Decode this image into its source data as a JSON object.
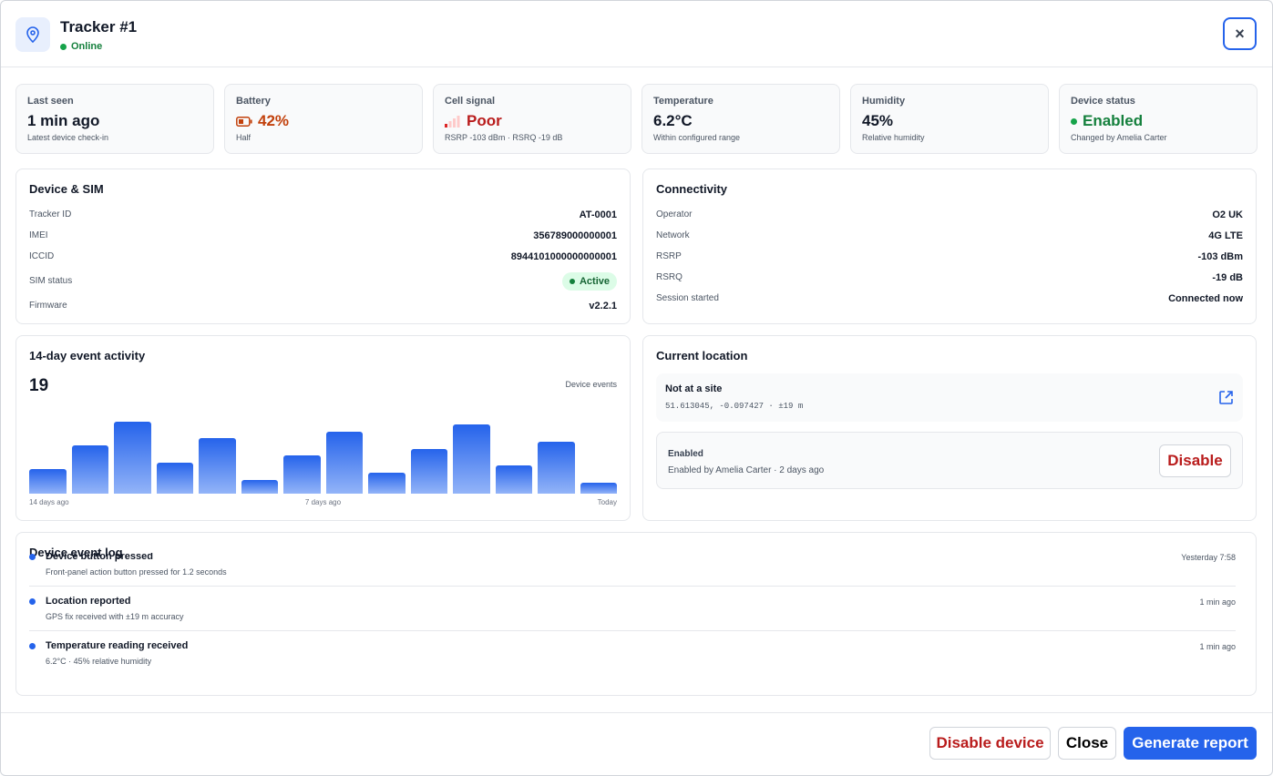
{
  "header": {
    "title": "Tracker #1",
    "status": "Online"
  },
  "stats": [
    {
      "label": "Last seen",
      "value": "1 min ago",
      "sub": "Latest device check-in"
    },
    {
      "label": "Battery",
      "value": "42%",
      "sub": "Half"
    },
    {
      "label": "Cell signal",
      "value": "Poor",
      "sub": "RSRP -103 dBm · RSRQ -19 dB"
    },
    {
      "label": "Temperature",
      "value": "6.2°C",
      "sub": "Within configured range"
    },
    {
      "label": "Humidity",
      "value": "45%",
      "sub": "Relative humidity"
    },
    {
      "label": "Device status",
      "value": "Enabled",
      "sub": "Changed by Amelia Carter"
    }
  ],
  "device_sim": {
    "title": "Device & SIM",
    "rows": [
      {
        "label": "Tracker ID",
        "value": "AT-0001"
      },
      {
        "label": "IMEI",
        "value": "356789000000001"
      },
      {
        "label": "ICCID",
        "value": "8944101000000000001"
      },
      {
        "label": "SIM status",
        "value": "Active"
      },
      {
        "label": "Firmware",
        "value": "v2.2.1"
      }
    ]
  },
  "connectivity": {
    "title": "Connectivity",
    "rows": [
      {
        "label": "Operator",
        "value": "O2 UK"
      },
      {
        "label": "Network",
        "value": "4G LTE"
      },
      {
        "label": "RSRP",
        "value": "-103 dBm"
      },
      {
        "label": "RSRQ",
        "value": "-19 dB"
      },
      {
        "label": "Session started",
        "value": "Connected now"
      }
    ]
  },
  "activity": {
    "title": "14-day event activity",
    "total": 19,
    "caption": "Device events",
    "values": [
      27,
      53,
      79,
      34,
      61,
      15,
      42,
      68,
      23,
      49,
      76,
      31,
      57,
      12
    ],
    "axis_labels": [
      "14 days ago",
      "7 days ago",
      "Today"
    ]
  },
  "location": {
    "title": "Current location",
    "place": "Not at a site",
    "coords": "51.613045, -0.097427 · ±19 m",
    "status_title": "Enabled",
    "status_sub": "Enabled by Amelia Carter · 2 days ago",
    "button": "Disable"
  },
  "event_log": {
    "title": "Device event log",
    "events": [
      {
        "title": "Device button pressed",
        "detail": "Front-panel action button pressed for 1.2 seconds",
        "time": "Yesterday 7:58"
      },
      {
        "title": "Location reported",
        "detail": "GPS fix received with ±19 m accuracy",
        "time": "1 min ago"
      },
      {
        "title": "Temperature reading received",
        "detail": "6.2°C · 45% relative humidity",
        "time": "1 min ago"
      }
    ]
  },
  "footer": {
    "buttons": [
      "Disable device",
      "Close",
      "Generate report"
    ]
  }
}
